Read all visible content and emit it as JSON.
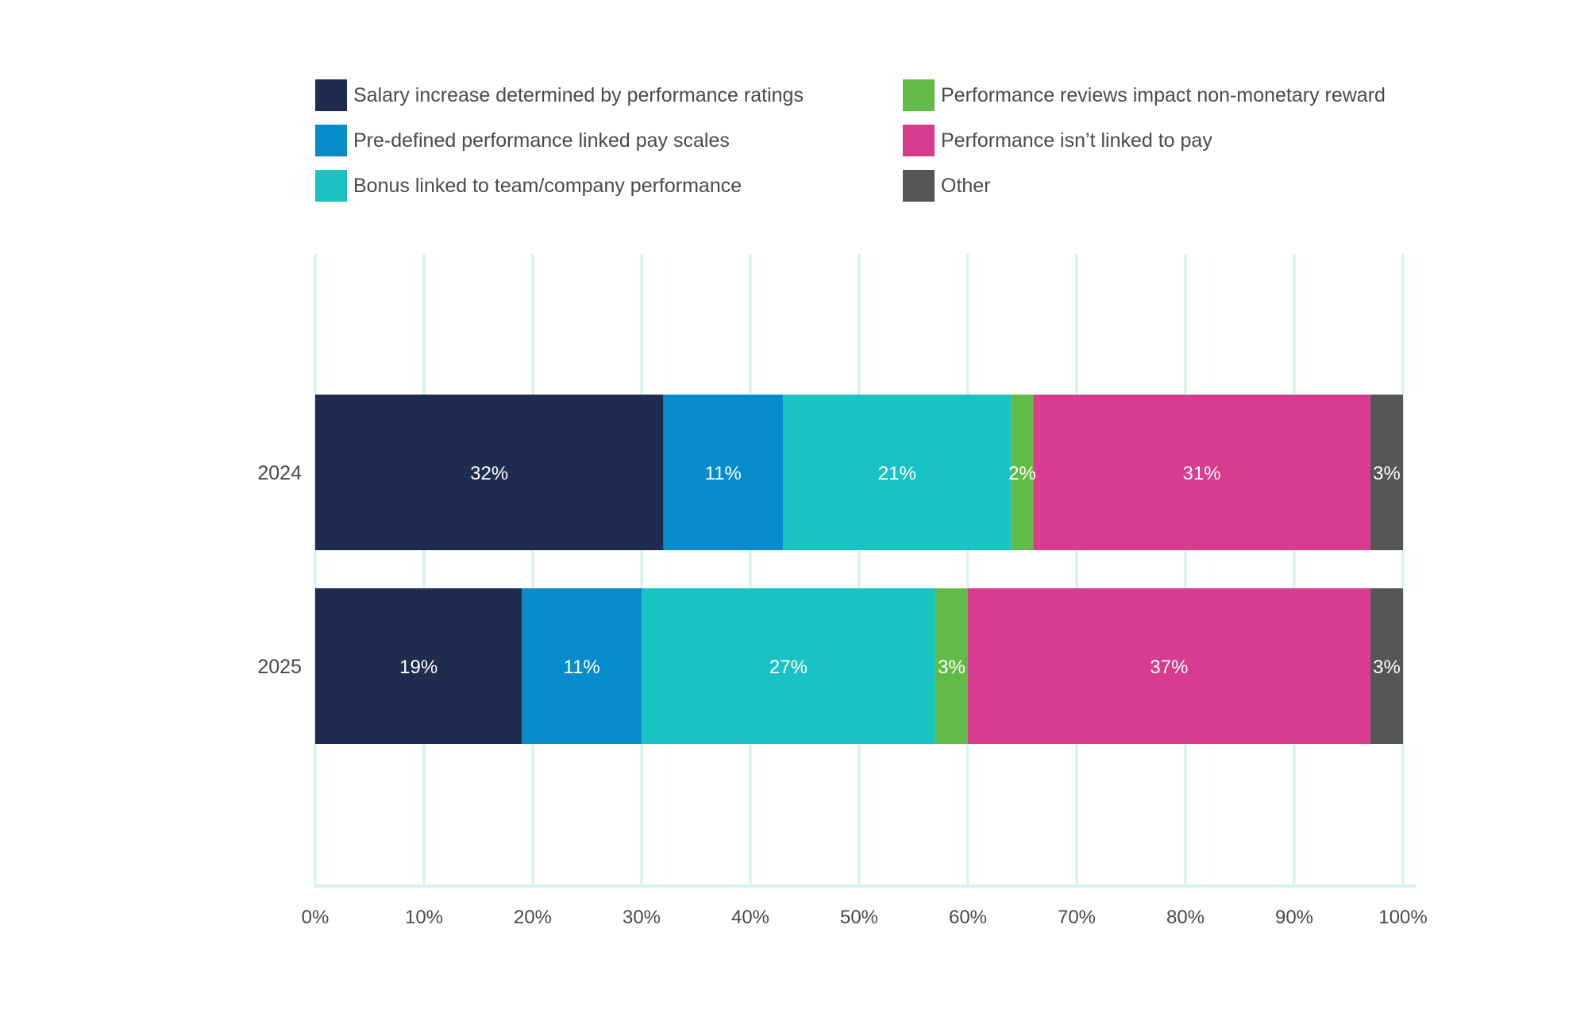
{
  "chart_data": {
    "type": "bar",
    "orientation": "horizontal",
    "stacked": true,
    "categories": [
      "2024",
      "2025"
    ],
    "series": [
      {
        "name": "Salary increase determined by performance ratings",
        "color": "#1f2b4f",
        "values": [
          32,
          19
        ],
        "labels": [
          "32%",
          "19%"
        ]
      },
      {
        "name": "Pre-defined performance linked pay scales",
        "color": "#068ccb",
        "values": [
          11,
          11
        ],
        "labels": [
          "11%",
          "11%"
        ]
      },
      {
        "name": "Bonus linked to team/company performance",
        "color": "#19c3c3",
        "values": [
          21,
          27
        ],
        "labels": [
          "21%",
          "27%"
        ]
      },
      {
        "name": "Performance reviews impact non-monetary reward",
        "color": "#63bb47",
        "values": [
          2,
          3
        ],
        "labels": [
          "2%",
          "3%"
        ]
      },
      {
        "name": "Performance isn’t linked to pay",
        "color": "#d93c8f",
        "values": [
          31,
          37
        ],
        "labels": [
          "31%",
          "37%"
        ]
      },
      {
        "name": "Other",
        "color": "#555555",
        "values": [
          3,
          3
        ],
        "labels": [
          "3%",
          "3%"
        ]
      }
    ],
    "xlim": [
      0,
      100
    ],
    "xticks": [
      "0%",
      "10%",
      "20%",
      "30%",
      "40%",
      "50%",
      "60%",
      "70%",
      "80%",
      "90%",
      "100%"
    ],
    "grid": true,
    "grid_color": "#d4f2f1",
    "legend_position": "top",
    "title": "",
    "xlabel": "",
    "ylabel": ""
  }
}
